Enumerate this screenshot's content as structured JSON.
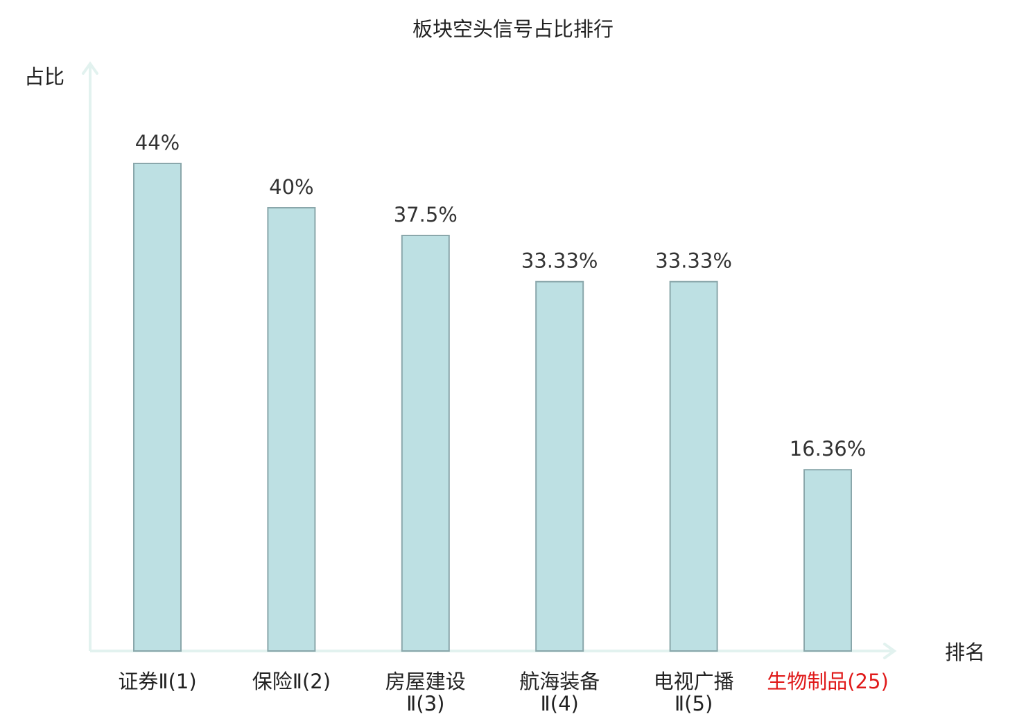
{
  "chart_data": {
    "type": "bar",
    "title": "板块空头信号占比排行",
    "ylabel": "占比",
    "xlabel": "排名",
    "ylim": [
      0,
      50
    ],
    "grid": false,
    "categories": [
      {
        "lines": [
          "证券Ⅱ(1)"
        ],
        "highlight": false
      },
      {
        "lines": [
          "保险Ⅱ(2)"
        ],
        "highlight": false
      },
      {
        "lines": [
          "房屋建设",
          "Ⅱ(3)"
        ],
        "highlight": false
      },
      {
        "lines": [
          "航海装备",
          "Ⅱ(4)"
        ],
        "highlight": false
      },
      {
        "lines": [
          "电视广播",
          "Ⅱ(5)"
        ],
        "highlight": false
      },
      {
        "lines": [
          "生物制品(25)"
        ],
        "highlight": true
      }
    ],
    "values": [
      44,
      40,
      37.5,
      33.33,
      33.33,
      16.36
    ],
    "data_labels": [
      "44%",
      "40%",
      "37.5%",
      "33.33%",
      "33.33%",
      "16.36%"
    ]
  },
  "colors": {
    "bar_fill": "#bde0e3",
    "bar_stroke": "#8aa7ab",
    "axis": "#e2f2ef",
    "text": "#333333",
    "label": "#222222",
    "highlight": "#e01a1a"
  }
}
